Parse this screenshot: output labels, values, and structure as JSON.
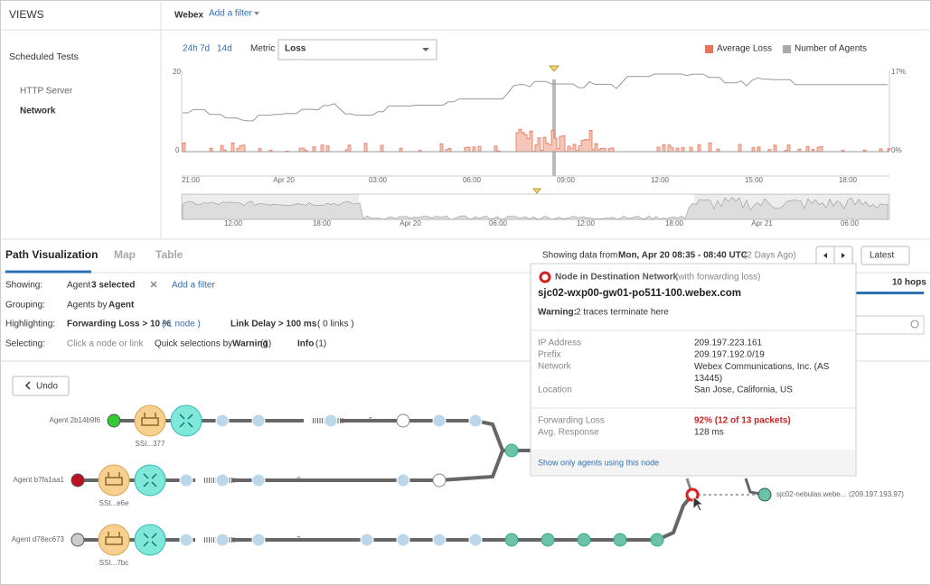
{
  "sidebar": {
    "title": "VIEWS",
    "section": "Scheduled Tests",
    "items": [
      "HTTP Server",
      "Network"
    ]
  },
  "header": {
    "test": "Webex",
    "filter": "Add a filter"
  },
  "chart": {
    "ranges": [
      "24h",
      "7d",
      "14d"
    ],
    "metric_label": "Metric",
    "metric": "Loss",
    "legend": [
      "Average Loss",
      "Number of Agents"
    ],
    "y_left": [
      "20",
      "0"
    ],
    "y_right": [
      "17%",
      "0%"
    ],
    "x_labels": [
      "21:00",
      "Apr 20",
      "03:00",
      "06:00",
      "09:00",
      "12:00",
      "15:00",
      "18:00"
    ],
    "overview_labels": [
      "12:00",
      "18:00",
      "Apr 20",
      "06:00",
      "12:00",
      "18:00",
      "Apr 21",
      "06:00"
    ]
  },
  "tabs": [
    "Path Visualization",
    "Map",
    "Table"
  ],
  "range": {
    "prefix": "Showing data from",
    "time": "Mon, Apr 20 08:35 - 08:40 UTC",
    "ago": "(2 Days Ago)",
    "latest": "Latest"
  },
  "filters": {
    "showing": [
      "Showing:",
      "Agent",
      "3 selected",
      "Add a filter"
    ],
    "grouping": [
      "Grouping:",
      "Agents by",
      "Agent"
    ],
    "highlighting": [
      "Highlighting:",
      "Forwarding Loss > 10 %",
      "( 1 node )",
      "Link Delay > 100 ms",
      "( 0 links )"
    ],
    "selecting": [
      "Selecting:",
      "Click a node or link",
      "Quick selections by",
      "Warning",
      "(1)",
      "Info",
      "(1)"
    ],
    "hops": "10 hops"
  },
  "undo": "Undo",
  "agents": [
    {
      "name": "Agent 2b14b9f6",
      "sub": "SSI...377",
      "hops": "5"
    },
    {
      "name": "Agent b7fa1aa1",
      "sub": "SSI...e6e",
      "hops": "3"
    },
    {
      "name": "Agent d78ec673",
      "sub": "SSI...7bc",
      "hops": "3"
    }
  ],
  "destination": {
    "name": "sjc02-nebulas.webe...",
    "ip": "(209.197.193.97)"
  },
  "popup": {
    "title": "Node in Destination Network",
    "title_note": "(with forwarding loss)",
    "host": "sjc02-wxp00-gw01-po511-100.webex.com",
    "warning_label": "Warning:",
    "warning": "2 traces terminate here",
    "details": [
      [
        "IP Address",
        "209.197.223.161"
      ],
      [
        "Prefix",
        "209.197.192.0/19"
      ],
      [
        "Network",
        "Webex Communications, Inc. (AS 13445)"
      ],
      [
        "Location",
        "San Jose, California, US"
      ]
    ],
    "stats": [
      [
        "Forwarding Loss",
        "92% (12 of 13 packets)"
      ],
      [
        "Avg. Response",
        "128 ms"
      ]
    ],
    "action": "Show only agents using this node"
  }
}
